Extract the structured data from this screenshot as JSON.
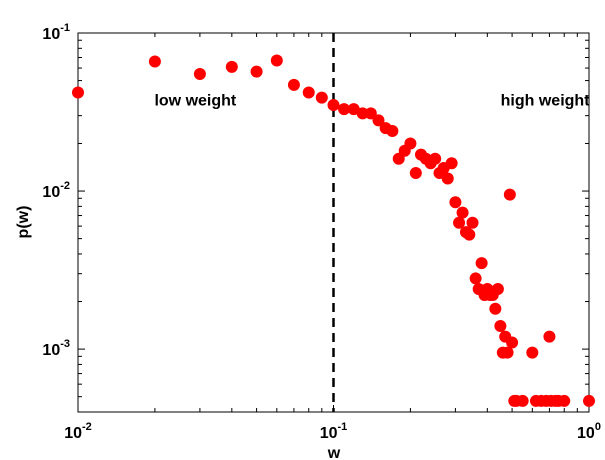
{
  "chart_data": {
    "type": "scatter",
    "title": "",
    "xlabel": "w",
    "ylabel": "p(w)",
    "xscale": "log",
    "yscale": "log",
    "xlim": [
      0.01,
      1
    ],
    "ylim": [
      0.0004,
      0.1
    ],
    "grid": false,
    "x_ticks": [
      {
        "value": 0.01,
        "base": "10",
        "exp": "-2"
      },
      {
        "value": 0.1,
        "base": "10",
        "exp": "-1"
      },
      {
        "value": 1,
        "base": "10",
        "exp": "0"
      }
    ],
    "y_ticks": [
      {
        "value": 0.001,
        "base": "10",
        "exp": "-3"
      },
      {
        "value": 0.01,
        "base": "10",
        "exp": "-2"
      },
      {
        "value": 0.1,
        "base": "10",
        "exp": "-1"
      }
    ],
    "threshold_line": {
      "x": 0.1,
      "style": "dashed"
    },
    "annotations": [
      {
        "text": "low weight",
        "x": 0.0106,
        "y": 0.038
      },
      {
        "text": "high weight",
        "x": 0.24,
        "y": 0.038
      }
    ],
    "marker_color": "#ff0000",
    "series": [
      {
        "points": [
          [
            0.01,
            0.042
          ],
          [
            0.02,
            0.066
          ],
          [
            0.03,
            0.055
          ],
          [
            0.04,
            0.061
          ],
          [
            0.05,
            0.057
          ],
          [
            0.06,
            0.067
          ],
          [
            0.07,
            0.047
          ],
          [
            0.08,
            0.042
          ],
          [
            0.09,
            0.039
          ],
          [
            0.1,
            0.035
          ],
          [
            0.11,
            0.033
          ],
          [
            0.12,
            0.033
          ],
          [
            0.13,
            0.031
          ],
          [
            0.14,
            0.031
          ],
          [
            0.15,
            0.028
          ],
          [
            0.16,
            0.025
          ],
          [
            0.17,
            0.024
          ],
          [
            0.18,
            0.016
          ],
          [
            0.19,
            0.018
          ],
          [
            0.2,
            0.02
          ],
          [
            0.21,
            0.013
          ],
          [
            0.22,
            0.017
          ],
          [
            0.23,
            0.016
          ],
          [
            0.24,
            0.015
          ],
          [
            0.25,
            0.016
          ],
          [
            0.26,
            0.013
          ],
          [
            0.27,
            0.014
          ],
          [
            0.28,
            0.012
          ],
          [
            0.29,
            0.015
          ],
          [
            0.3,
            0.0085
          ],
          [
            0.31,
            0.0063
          ],
          [
            0.32,
            0.0073
          ],
          [
            0.33,
            0.0055
          ],
          [
            0.34,
            0.0053
          ],
          [
            0.35,
            0.0063
          ],
          [
            0.36,
            0.0028
          ],
          [
            0.37,
            0.0024
          ],
          [
            0.38,
            0.0035
          ],
          [
            0.39,
            0.0022
          ],
          [
            0.4,
            0.0024
          ],
          [
            0.41,
            0.0022
          ],
          [
            0.42,
            0.0022
          ],
          [
            0.43,
            0.0018
          ],
          [
            0.44,
            0.0024
          ],
          [
            0.45,
            0.0014
          ],
          [
            0.46,
            0.00095
          ],
          [
            0.47,
            0.0012
          ],
          [
            0.48,
            0.00095
          ],
          [
            0.49,
            0.0095
          ],
          [
            0.5,
            0.0011
          ],
          [
            0.51,
            0.00047
          ],
          [
            0.52,
            0.00047
          ],
          [
            0.55,
            0.00047
          ],
          [
            0.6,
            0.00095
          ],
          [
            0.62,
            0.00047
          ],
          [
            0.65,
            0.00047
          ],
          [
            0.68,
            0.00047
          ],
          [
            0.71,
            0.00047
          ],
          [
            0.74,
            0.00047
          ],
          [
            0.76,
            0.00047
          ],
          [
            0.7,
            0.0012
          ],
          [
            0.8,
            0.00047
          ],
          [
            1.0,
            0.00047
          ]
        ]
      }
    ]
  }
}
